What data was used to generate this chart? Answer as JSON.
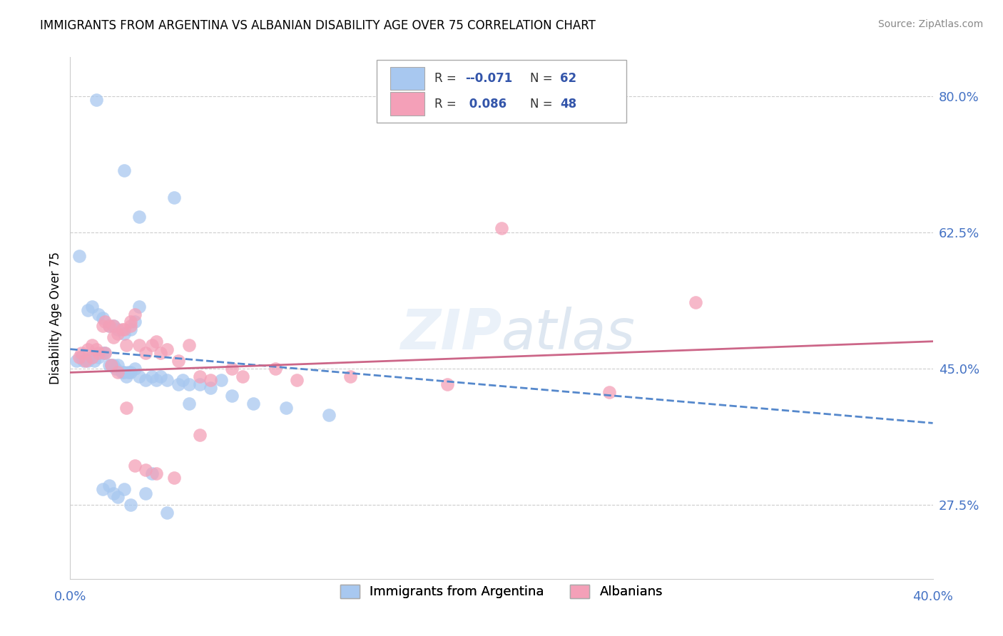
{
  "title": "IMMIGRANTS FROM ARGENTINA VS ALBANIAN DISABILITY AGE OVER 75 CORRELATION CHART",
  "source": "Source: ZipAtlas.com",
  "ylabel": "Disability Age Over 75",
  "y_ticks": [
    27.5,
    45.0,
    62.5,
    80.0
  ],
  "x_min": 0.0,
  "x_max": 40.0,
  "y_min": 18.0,
  "y_max": 85.0,
  "argentina_color": "#a8c8f0",
  "albanian_color": "#f4a0b8",
  "trend_blue_color": "#5588cc",
  "trend_pink_color": "#cc6688",
  "watermark": "ZIP atlas",
  "legend_R1": "-0.071",
  "legend_N1": "62",
  "legend_R2": "0.086",
  "legend_N2": "48",
  "blue_scatter_x": [
    1.2,
    2.5,
    3.2,
    4.8,
    0.4,
    0.8,
    1.0,
    1.3,
    1.5,
    1.8,
    2.0,
    2.2,
    2.5,
    2.8,
    3.0,
    3.2,
    0.3,
    0.5,
    0.6,
    0.8,
    1.0,
    1.1,
    1.3,
    1.5,
    1.6,
    1.8,
    1.9,
    2.0,
    2.1,
    2.2,
    2.4,
    2.5,
    2.6,
    2.7,
    2.8,
    3.0,
    3.2,
    3.5,
    3.8,
    4.0,
    4.2,
    4.5,
    5.0,
    5.2,
    5.5,
    6.0,
    6.5,
    7.0,
    7.5,
    8.5,
    10.0,
    12.0,
    1.5,
    1.8,
    2.0,
    2.2,
    2.5,
    2.8,
    3.5,
    3.8,
    4.5,
    5.5
  ],
  "blue_scatter_y": [
    79.5,
    70.5,
    64.5,
    67.0,
    59.5,
    52.5,
    53.0,
    52.0,
    51.5,
    50.5,
    50.5,
    50.0,
    49.5,
    50.0,
    51.0,
    53.0,
    46.0,
    46.5,
    46.0,
    46.0,
    46.5,
    46.0,
    46.5,
    47.0,
    47.0,
    45.5,
    45.5,
    45.5,
    45.0,
    45.5,
    44.5,
    44.5,
    44.0,
    44.5,
    44.5,
    45.0,
    44.0,
    43.5,
    44.0,
    43.5,
    44.0,
    43.5,
    43.0,
    43.5,
    43.0,
    43.0,
    42.5,
    43.5,
    41.5,
    40.5,
    40.0,
    39.0,
    29.5,
    30.0,
    29.0,
    28.5,
    29.5,
    27.5,
    29.0,
    31.5,
    26.5,
    40.5
  ],
  "pink_scatter_x": [
    0.5,
    0.8,
    1.0,
    1.2,
    1.5,
    1.6,
    1.8,
    2.0,
    2.0,
    2.2,
    2.4,
    2.5,
    2.6,
    2.8,
    2.8,
    3.0,
    3.2,
    3.5,
    3.8,
    4.0,
    4.2,
    4.5,
    5.0,
    5.5,
    6.0,
    6.5,
    8.0,
    10.5,
    0.4,
    0.7,
    1.0,
    1.3,
    1.6,
    1.9,
    2.2,
    2.6,
    3.0,
    3.5,
    4.0,
    4.8,
    6.0,
    7.5,
    9.5,
    13.0,
    17.5,
    20.0,
    25.0,
    29.0
  ],
  "pink_scatter_y": [
    47.0,
    47.5,
    48.0,
    47.5,
    50.5,
    51.0,
    50.5,
    50.5,
    49.0,
    49.5,
    50.0,
    50.0,
    48.0,
    50.5,
    51.0,
    52.0,
    48.0,
    47.0,
    48.0,
    48.5,
    47.0,
    47.5,
    46.0,
    48.0,
    44.0,
    43.5,
    44.0,
    43.5,
    46.5,
    46.0,
    46.5,
    47.0,
    47.0,
    45.5,
    44.5,
    40.0,
    32.5,
    32.0,
    31.5,
    31.0,
    36.5,
    45.0,
    45.0,
    44.0,
    43.0,
    63.0,
    42.0,
    53.5
  ],
  "blue_trend_x0": 0.0,
  "blue_trend_y0": 47.5,
  "blue_trend_x1": 40.0,
  "blue_trend_y1": 38.0,
  "pink_trend_x0": 0.0,
  "pink_trend_y0": 44.5,
  "pink_trend_x1": 40.0,
  "pink_trend_y1": 48.5
}
